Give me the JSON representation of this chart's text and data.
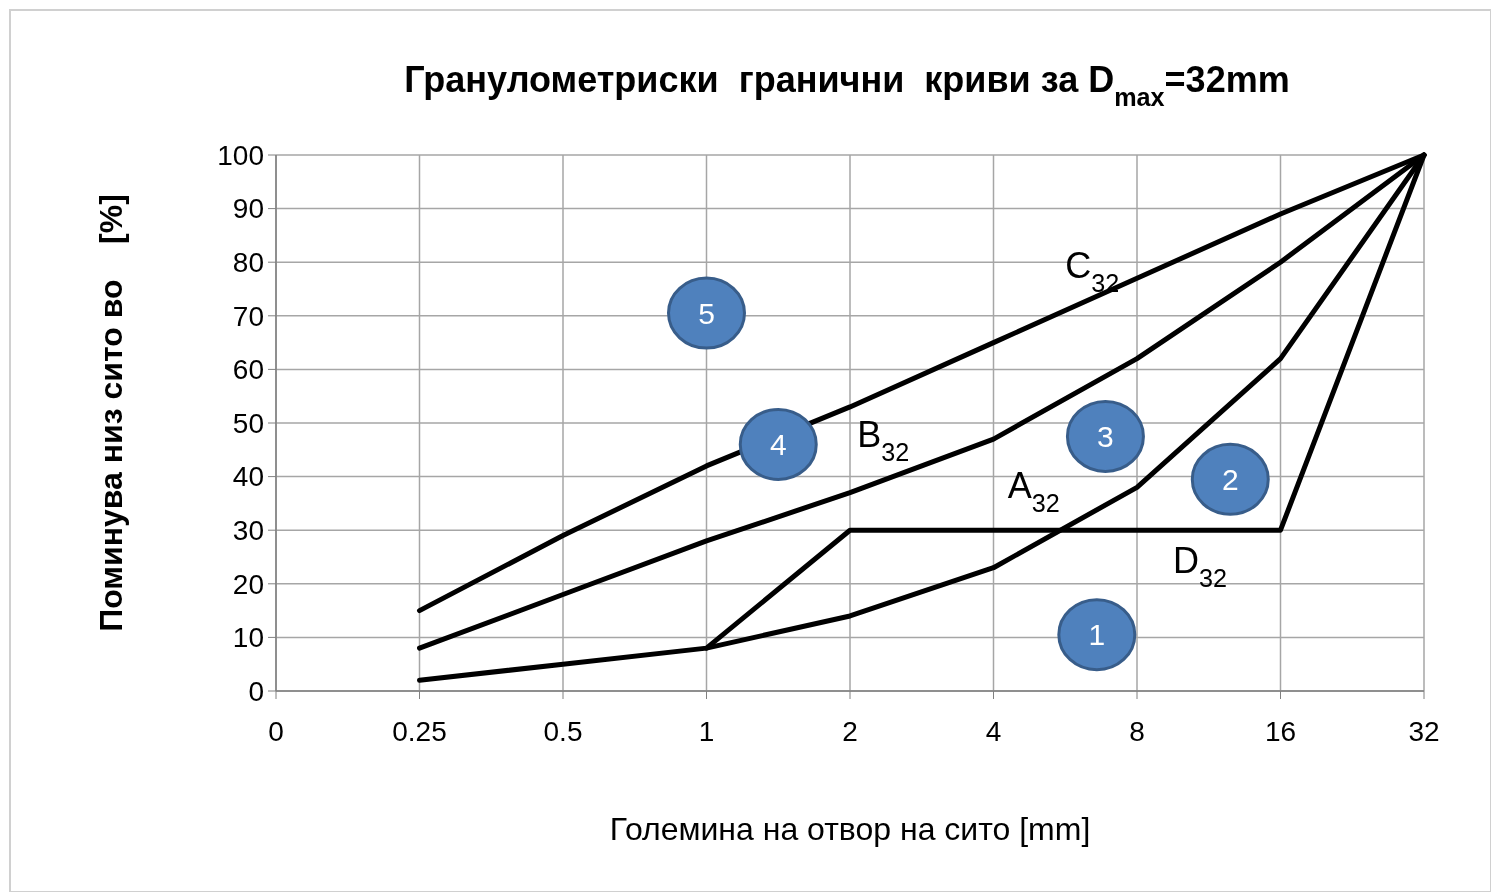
{
  "chart_data": {
    "type": "line",
    "title": "Гранулометриски  гранични  криви за D$_{max}$=32mm",
    "xlabel": "Големина на отвор на сито [mm]",
    "ylabel": "Поминува низ сито во    [%]",
    "categories": [
      "0",
      "0.25",
      "0.5",
      "1",
      "2",
      "4",
      "8",
      "16",
      "32"
    ],
    "series": [
      {
        "name": "A$_{32}$",
        "color": "#000000",
        "values": [
          null,
          2,
          5,
          8,
          14,
          23,
          38,
          62,
          100
        ]
      },
      {
        "name": "B$_{32}$",
        "color": "#000000",
        "values": [
          null,
          8,
          18,
          28,
          37,
          47,
          62,
          80,
          100
        ]
      },
      {
        "name": "C$_{32}$",
        "color": "#000000",
        "values": [
          null,
          15,
          29,
          42,
          53,
          65,
          77,
          89,
          100
        ]
      },
      {
        "name": "D$_{32}$",
        "color": "#000000",
        "values": [
          null,
          null,
          null,
          8,
          30,
          30,
          30,
          30,
          100
        ]
      }
    ],
    "ylim": [
      0,
      100
    ],
    "yticks": [
      0,
      10,
      20,
      30,
      40,
      50,
      60,
      70,
      80,
      90,
      100
    ],
    "grid": true,
    "line_style": "solid",
    "annotations": [
      "1",
      "2",
      "3",
      "4",
      "5"
    ]
  }
}
